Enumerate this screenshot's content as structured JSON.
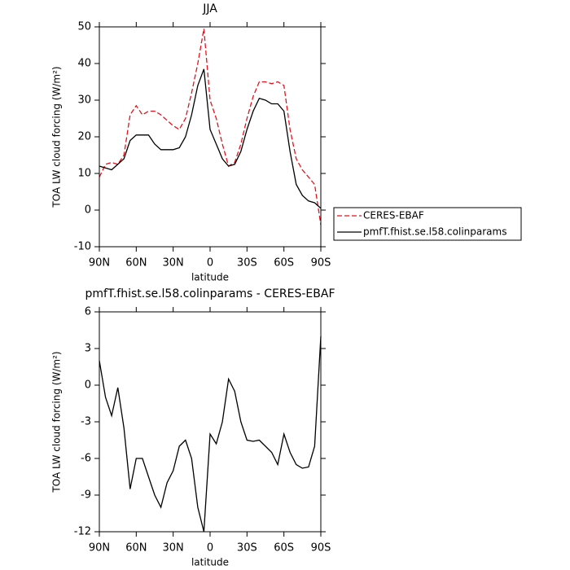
{
  "chart_data": [
    {
      "type": "line",
      "title": "JJA",
      "xlabel": "latitude",
      "ylabel": "TOA LW cloud forcing (W/m²)",
      "x": [
        90,
        85,
        80,
        75,
        70,
        65,
        60,
        55,
        50,
        45,
        40,
        35,
        30,
        25,
        20,
        15,
        10,
        5,
        0,
        -5,
        -10,
        -15,
        -20,
        -25,
        -30,
        -35,
        -40,
        -45,
        -50,
        -55,
        -60,
        -65,
        -70,
        -75,
        -80,
        -85,
        -90
      ],
      "xlim": [
        90,
        -90
      ],
      "xticks": [
        {
          "value": 90,
          "label": "90N"
        },
        {
          "value": 60,
          "label": "60N"
        },
        {
          "value": 30,
          "label": "30N"
        },
        0,
        {
          "value": -30,
          "label": "30S"
        },
        {
          "value": -60,
          "label": "60S"
        },
        {
          "value": -90,
          "label": "90S"
        }
      ],
      "ylim": [
        -10,
        50
      ],
      "yticks": [
        -10,
        0,
        10,
        20,
        30,
        40,
        50
      ],
      "legend": "right",
      "series": [
        {
          "name": "CERES-EBAF",
          "color": "#e8101a",
          "line_style": "dashed",
          "values": [
            9,
            12.5,
            13,
            12.5,
            15,
            26,
            28.5,
            26,
            27,
            27,
            26,
            24.5,
            23,
            22,
            25,
            32,
            40,
            49.5,
            30,
            25,
            18,
            12,
            13,
            18,
            25,
            31,
            35,
            35,
            34.5,
            35,
            34,
            22,
            14,
            11,
            9,
            7,
            -4
          ]
        },
        {
          "name": "pmfT.fhist.se.l58.colinparams",
          "color": "#000000",
          "line_style": "solid",
          "values": [
            12,
            11.5,
            11,
            12.5,
            14,
            19,
            20.5,
            20.5,
            20.5,
            18,
            16.5,
            16.5,
            16.5,
            17,
            20,
            26,
            34,
            38.5,
            22,
            18,
            14,
            12,
            12.5,
            16,
            22,
            27,
            30.5,
            30,
            29,
            29,
            27,
            16,
            7,
            4,
            2.5,
            2,
            0.5
          ]
        }
      ]
    },
    {
      "type": "line",
      "title": "pmfT.fhist.se.l58.colinparams - CERES-EBAF",
      "xlabel": "latitude",
      "ylabel": "TOA LW cloud forcing (W/m²)",
      "x": [
        90,
        85,
        80,
        75,
        70,
        65,
        60,
        55,
        50,
        45,
        40,
        35,
        30,
        25,
        20,
        15,
        10,
        5,
        0,
        -5,
        -10,
        -15,
        -20,
        -25,
        -30,
        -35,
        -40,
        -45,
        -50,
        -55,
        -60,
        -65,
        -70,
        -75,
        -80,
        -85,
        -90
      ],
      "xlim": [
        90,
        -90
      ],
      "xticks": [
        {
          "value": 90,
          "label": "90N"
        },
        {
          "value": 60,
          "label": "60N"
        },
        {
          "value": 30,
          "label": "30N"
        },
        0,
        {
          "value": -30,
          "label": "30S"
        },
        {
          "value": -60,
          "label": "60S"
        },
        {
          "value": -90,
          "label": "90S"
        }
      ],
      "ylim": [
        -12,
        6
      ],
      "yticks": [
        -12,
        -9,
        -6,
        -3,
        0,
        3,
        6
      ],
      "series": [
        {
          "color": "#000000",
          "line_style": "solid",
          "values": [
            2,
            -1,
            -2.5,
            -0.2,
            -3.5,
            -8.5,
            -6,
            -6,
            -7.5,
            -9,
            -10,
            -8,
            -7,
            -5,
            -4.5,
            -6,
            -10,
            -12,
            -4,
            -4.8,
            -3,
            0.5,
            -0.5,
            -3,
            -4.5,
            -4.6,
            -4.5,
            -5,
            -5.5,
            -6.5,
            -4,
            -5.5,
            -6.5,
            -6.8,
            -6.7,
            -5,
            4
          ]
        }
      ]
    }
  ]
}
